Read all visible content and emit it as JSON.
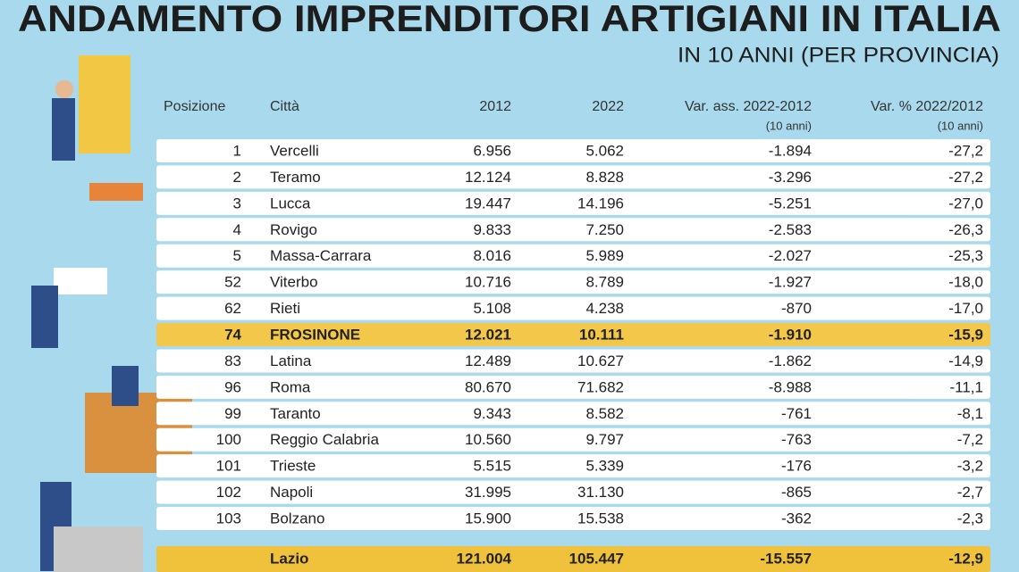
{
  "header": {
    "title": "ANDAMENTO IMPRENDITORI ARTIGIANI IN ITALIA",
    "subtitle": "IN 10 ANNI (PER PROVINCIA)"
  },
  "table": {
    "columns": [
      {
        "label": "Posizione"
      },
      {
        "label": "Città"
      },
      {
        "label": "2012"
      },
      {
        "label": "2022"
      },
      {
        "label": "Var. ass. 2022-2012",
        "note": "(10 anni)"
      },
      {
        "label": "Var. % 2022/2012",
        "note": "(10 anni)"
      }
    ],
    "rows": [
      [
        "1",
        "Vercelli",
        "6.956",
        "5.062",
        "-1.894",
        "-27,2"
      ],
      [
        "2",
        "Teramo",
        "12.124",
        "8.828",
        "-3.296",
        "-27,2"
      ],
      [
        "3",
        "Lucca",
        "19.447",
        "14.196",
        "-5.251",
        "-27,0"
      ],
      [
        "4",
        "Rovigo",
        "9.833",
        "7.250",
        "-2.583",
        "-26,3"
      ],
      [
        "5",
        "Massa-Carrara",
        "8.016",
        "5.989",
        "-2.027",
        "-25,3"
      ],
      [
        "52",
        "Viterbo",
        "10.716",
        "8.789",
        "-1.927",
        "-18,0"
      ],
      [
        "62",
        "Rieti",
        "5.108",
        "4.238",
        "-870",
        "-17,0"
      ],
      [
        "74",
        "FROSINONE",
        "12.021",
        "10.111",
        "-1.910",
        "-15,9"
      ],
      [
        "83",
        "Latina",
        "12.489",
        "10.627",
        "-1.862",
        "-14,9"
      ],
      [
        "96",
        "Roma",
        "80.670",
        "71.682",
        "-8.988",
        "-11,1"
      ],
      [
        "99",
        "Taranto",
        "9.343",
        "8.582",
        "-761",
        "-8,1"
      ],
      [
        "100",
        "Reggio Calabria",
        "10.560",
        "9.797",
        "-763",
        "-7,2"
      ],
      [
        "101",
        "Trieste",
        "5.515",
        "5.339",
        "-176",
        "-3,2"
      ],
      [
        "102",
        "Napoli",
        "31.995",
        "31.130",
        "-865",
        "-2,7"
      ],
      [
        "103",
        "Bolzano",
        "15.900",
        "15.538",
        "-362",
        "-2,3"
      ]
    ],
    "total": [
      "Lazio",
      "121.004",
      "105.447",
      "-15.557",
      "-12,9"
    ]
  }
}
